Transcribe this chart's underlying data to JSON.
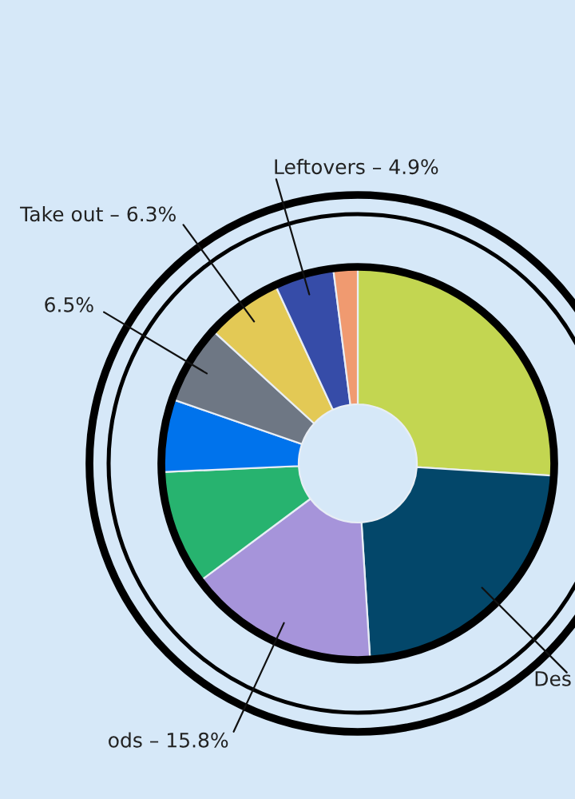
{
  "chart_data": {
    "type": "donut",
    "categories": [
      null,
      "Des",
      "ods",
      null,
      null,
      null,
      "Take out",
      "Leftovers",
      null
    ],
    "values": [
      26,
      23,
      15.8,
      9.5,
      6,
      6.5,
      6.3,
      4.9,
      2
    ],
    "colors": [
      "#c3d651",
      "#03476a",
      "#a694da",
      "#27b36f",
      "#0073ec",
      "#6e7784",
      "#e3c955",
      "#364ca8",
      "#f09a70"
    ],
    "value_labels": [
      null,
      null,
      "15.8%",
      null,
      null,
      "6.5%",
      "6.3%",
      "4.9%",
      null
    ]
  }
}
